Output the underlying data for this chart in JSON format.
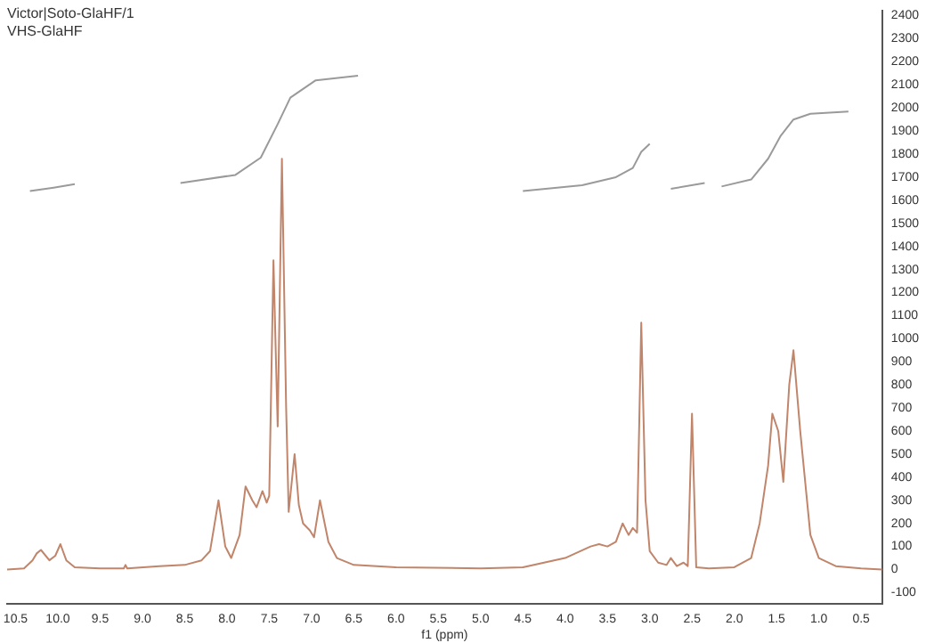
{
  "chart_data": {
    "type": "line",
    "xlabel": "f1 (ppm)",
    "annotations": [
      "Victor|Soto-GlaHF/1",
      "VHS-GlaHF"
    ],
    "xlim": [
      10.6,
      0.25
    ],
    "ylim": [
      -150,
      2420
    ],
    "xticks": [
      {
        "value": 10.5,
        "label": "10.5"
      },
      {
        "value": 10,
        "label": "10.0"
      },
      {
        "value": 9.5,
        "label": "9.5"
      },
      {
        "value": 9,
        "label": "9.0"
      },
      {
        "value": 8.5,
        "label": "8.5"
      },
      {
        "value": 8,
        "label": "8.0"
      },
      {
        "value": 7.5,
        "label": "7.5"
      },
      {
        "value": 7,
        "label": "7.0"
      },
      {
        "value": 6.5,
        "label": "6.5"
      },
      {
        "value": 6,
        "label": "6.0"
      },
      {
        "value": 5.5,
        "label": "5.5"
      },
      {
        "value": 5,
        "label": "5.0"
      },
      {
        "value": 4.5,
        "label": "4.5"
      },
      {
        "value": 4,
        "label": "4.0"
      },
      {
        "value": 3.5,
        "label": "3.5"
      },
      {
        "value": 3,
        "label": "3.0"
      },
      {
        "value": 2.5,
        "label": "2.5"
      },
      {
        "value": 2,
        "label": "2.0"
      },
      {
        "value": 1.5,
        "label": "1.5"
      },
      {
        "value": 1,
        "label": "1.0"
      },
      {
        "value": 0.5,
        "label": "0.5"
      }
    ],
    "yticks": [
      -100,
      0,
      100,
      200,
      300,
      400,
      500,
      600,
      700,
      800,
      900,
      1000,
      1100,
      1200,
      1300,
      1400,
      1500,
      1600,
      1700,
      1800,
      1900,
      2000,
      2100,
      2200,
      2300,
      2400
    ],
    "grid": false,
    "legend": false,
    "marker": "none",
    "line_style": "solid",
    "series": [
      {
        "color": "#c0856a",
        "x": [
          10.6,
          10.4,
          10.3,
          10.25,
          10.2,
          10.1,
          10.03,
          9.97,
          9.9,
          9.8,
          9.5,
          9.22,
          9.2,
          9.18,
          8.8,
          8.5,
          8.3,
          8.2,
          8.1,
          8.02,
          7.95,
          7.85,
          7.78,
          7.7,
          7.65,
          7.58,
          7.53,
          7.5,
          7.45,
          7.42,
          7.4,
          7.35,
          7.3,
          7.27,
          7.2,
          7.15,
          7.1,
          7.02,
          6.97,
          6.9,
          6.8,
          6.7,
          6.5,
          6.0,
          5.0,
          4.5,
          4.0,
          3.7,
          3.6,
          3.5,
          3.4,
          3.32,
          3.25,
          3.2,
          3.15,
          3.1,
          3.05,
          3.0,
          2.9,
          2.8,
          2.75,
          2.68,
          2.6,
          2.55,
          2.5,
          2.45,
          2.3,
          2.0,
          1.8,
          1.7,
          1.6,
          1.55,
          1.48,
          1.42,
          1.35,
          1.3,
          1.22,
          1.1,
          1.0,
          0.8,
          0.5,
          0.25
        ],
        "values": [
          0,
          5,
          40,
          70,
          85,
          40,
          60,
          110,
          40,
          10,
          5,
          5,
          20,
          5,
          15,
          20,
          40,
          80,
          300,
          100,
          50,
          150,
          360,
          300,
          270,
          340,
          290,
          320,
          1340,
          900,
          620,
          1780,
          700,
          250,
          500,
          280,
          200,
          170,
          140,
          300,
          120,
          50,
          20,
          10,
          5,
          10,
          50,
          100,
          110,
          100,
          120,
          200,
          150,
          180,
          160,
          1070,
          300,
          80,
          30,
          20,
          50,
          15,
          30,
          15,
          675,
          10,
          5,
          10,
          50,
          200,
          450,
          675,
          600,
          380,
          800,
          950,
          600,
          150,
          50,
          15,
          5,
          0
        ]
      },
      {
        "color": "#9a9a9a",
        "x": [
          10.33,
          10.05,
          9.8
        ],
        "values": [
          1640,
          1655,
          1670
        ]
      },
      {
        "color": "#9a9a9a",
        "x": [
          8.55,
          7.9,
          7.6,
          7.4,
          7.25,
          6.95,
          6.45
        ],
        "values": [
          1675,
          1710,
          1785,
          1930,
          2045,
          2120,
          2140
        ]
      },
      {
        "color": "#9a9a9a",
        "x": [
          4.5,
          3.8,
          3.4,
          3.2,
          3.1,
          3.0
        ],
        "values": [
          1640,
          1665,
          1700,
          1740,
          1810,
          1845
        ]
      },
      {
        "color": "#9a9a9a",
        "x": [
          2.75,
          2.35
        ],
        "values": [
          1650,
          1675
        ]
      },
      {
        "color": "#9a9a9a",
        "x": [
          2.15,
          1.8,
          1.6,
          1.45,
          1.3,
          1.1,
          0.65
        ],
        "values": [
          1660,
          1690,
          1780,
          1880,
          1950,
          1975,
          1985
        ]
      }
    ]
  }
}
